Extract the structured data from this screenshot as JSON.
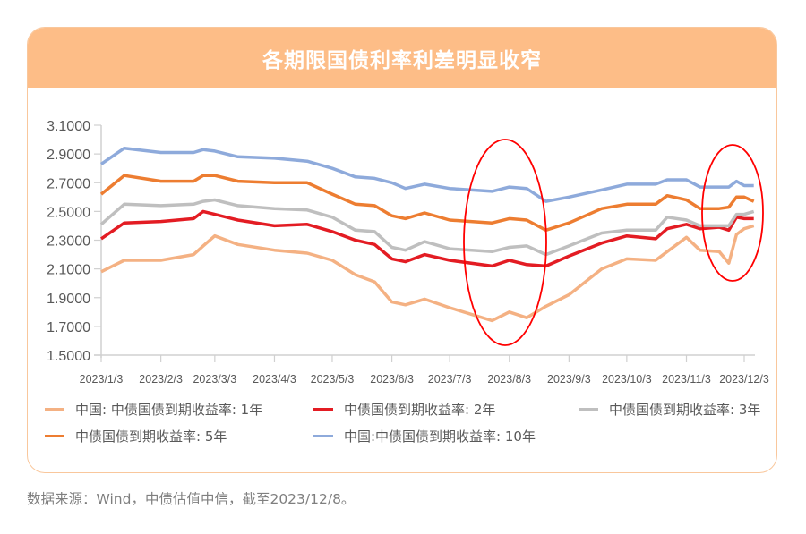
{
  "title": "各期限国债利率利差明显收窄",
  "source_note": "数据来源：Wind，中债估值中信，截至2023/12/8。",
  "chart_data": {
    "type": "line",
    "title": "各期限国债利率利差明显收窄",
    "xlabel": "",
    "ylabel": "",
    "ylim": [
      1.5,
      3.1
    ],
    "yticks": [
      "3.1000",
      "2.9000",
      "2.7000",
      "2.5000",
      "2.3000",
      "2.1000",
      "1.9000",
      "1.7000",
      "1.5000"
    ],
    "ytick_values": [
      3.1,
      2.9,
      2.7,
      2.5,
      2.3,
      2.1,
      1.9,
      1.7,
      1.5
    ],
    "xticks": [
      "2023/1/3",
      "2023/2/3",
      "2023/3/3",
      "2023/4/3",
      "2023/5/3",
      "2023/6/3",
      "2023/7/3",
      "2023/8/3",
      "2023/9/3",
      "2023/10/3",
      "2023/11/3",
      "2023/12/3"
    ],
    "x": [
      "1/3",
      "1/15",
      "2/3",
      "2/20",
      "2/25",
      "3/3",
      "3/15",
      "4/3",
      "4/20",
      "5/3",
      "5/15",
      "5/25",
      "6/3",
      "6/10",
      "6/20",
      "7/3",
      "7/25",
      "8/3",
      "8/12",
      "8/22",
      "9/3",
      "9/20",
      "10/3",
      "10/18",
      "10/24",
      "11/3",
      "11/10",
      "11/20",
      "11/25",
      "11/29",
      "12/3",
      "12/8"
    ],
    "grid": false,
    "legend_position": "bottom",
    "annotations": [
      "red-ellipse-around-2023/8",
      "red-ellipse-around-2023/12"
    ],
    "series": [
      {
        "name": "中国: 中债国债到期收益率: 1年",
        "color": "#f4b183",
        "values": [
          2.08,
          2.16,
          2.16,
          2.2,
          2.26,
          2.33,
          2.27,
          2.23,
          2.21,
          2.16,
          2.06,
          2.01,
          1.87,
          1.85,
          1.89,
          1.83,
          1.74,
          1.8,
          1.76,
          1.84,
          1.92,
          2.1,
          2.17,
          2.16,
          2.22,
          2.32,
          2.23,
          2.22,
          2.14,
          2.34,
          2.38,
          2.4
        ]
      },
      {
        "name": "中债国债到期收益率: 2年",
        "color": "#e31c23",
        "values": [
          2.31,
          2.42,
          2.43,
          2.45,
          2.5,
          2.48,
          2.44,
          2.4,
          2.41,
          2.36,
          2.3,
          2.27,
          2.17,
          2.15,
          2.2,
          2.16,
          2.12,
          2.16,
          2.13,
          2.12,
          2.19,
          2.28,
          2.33,
          2.31,
          2.38,
          2.41,
          2.38,
          2.39,
          2.37,
          2.46,
          2.45,
          2.45
        ]
      },
      {
        "name": "中债国债到期收益率: 3年",
        "color": "#bfbfbf",
        "values": [
          2.41,
          2.55,
          2.54,
          2.55,
          2.57,
          2.58,
          2.54,
          2.52,
          2.51,
          2.46,
          2.37,
          2.36,
          2.25,
          2.23,
          2.29,
          2.24,
          2.22,
          2.25,
          2.26,
          2.2,
          2.26,
          2.35,
          2.37,
          2.37,
          2.46,
          2.44,
          2.4,
          2.4,
          2.4,
          2.48,
          2.48,
          2.5
        ]
      },
      {
        "name": "中债国债到期收益率: 5年",
        "color": "#ed7d31",
        "values": [
          2.62,
          2.75,
          2.71,
          2.71,
          2.75,
          2.75,
          2.71,
          2.7,
          2.7,
          2.62,
          2.55,
          2.54,
          2.47,
          2.45,
          2.49,
          2.44,
          2.42,
          2.45,
          2.44,
          2.37,
          2.42,
          2.52,
          2.55,
          2.55,
          2.61,
          2.58,
          2.52,
          2.52,
          2.53,
          2.6,
          2.6,
          2.57
        ]
      },
      {
        "name": "中国:中债国债到期收益率: 10年",
        "color": "#8eaadb",
        "values": [
          2.83,
          2.94,
          2.91,
          2.91,
          2.93,
          2.92,
          2.88,
          2.87,
          2.85,
          2.8,
          2.74,
          2.73,
          2.7,
          2.66,
          2.69,
          2.66,
          2.64,
          2.67,
          2.66,
          2.57,
          2.6,
          2.65,
          2.69,
          2.69,
          2.72,
          2.72,
          2.67,
          2.67,
          2.67,
          2.71,
          2.68,
          2.68
        ]
      }
    ]
  }
}
